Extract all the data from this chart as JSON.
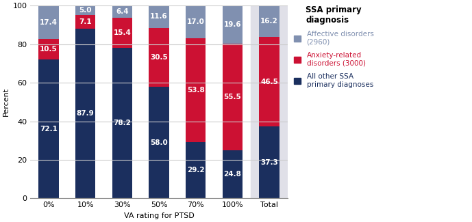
{
  "categories": [
    "0%",
    "10%",
    "30%",
    "50%",
    "70%",
    "100%",
    "Total"
  ],
  "bottom_values": [
    72.1,
    87.9,
    78.2,
    58.0,
    29.2,
    24.8,
    37.3
  ],
  "middle_values": [
    10.5,
    7.1,
    15.4,
    30.5,
    53.8,
    55.5,
    46.5
  ],
  "top_values": [
    17.4,
    5.0,
    6.4,
    11.6,
    17.0,
    19.6,
    16.2
  ],
  "bottom_color": "#1b2f5e",
  "middle_color": "#cc1133",
  "top_color": "#8090b0",
  "ylabel": "Percent",
  "xlabel": "VA rating for PTSD",
  "ylim": [
    0,
    100
  ],
  "yticks": [
    0,
    20,
    40,
    60,
    80,
    100
  ],
  "legend_title": "SSA primary\ndiagnosis",
  "legend_labels": [
    "Affective disorders\n(2960)",
    "Anxiety-related\ndisorders (3000)",
    "All other SSA\nprimary diagnoses"
  ],
  "legend_colors": [
    "#8090b0",
    "#cc1133",
    "#1b2f5e"
  ],
  "legend_text_colors": [
    "#8090b0",
    "#cc1133",
    "#1b2f5e"
  ],
  "plot_bg_color": "#ffffff",
  "total_bg_color": "#e0e0e8",
  "grid_color": "#cccccc",
  "label_fontsize": 7.5,
  "tick_fontsize": 8,
  "legend_fontsize": 7.5,
  "legend_title_fontsize": 8.5,
  "bar_width": 0.55
}
